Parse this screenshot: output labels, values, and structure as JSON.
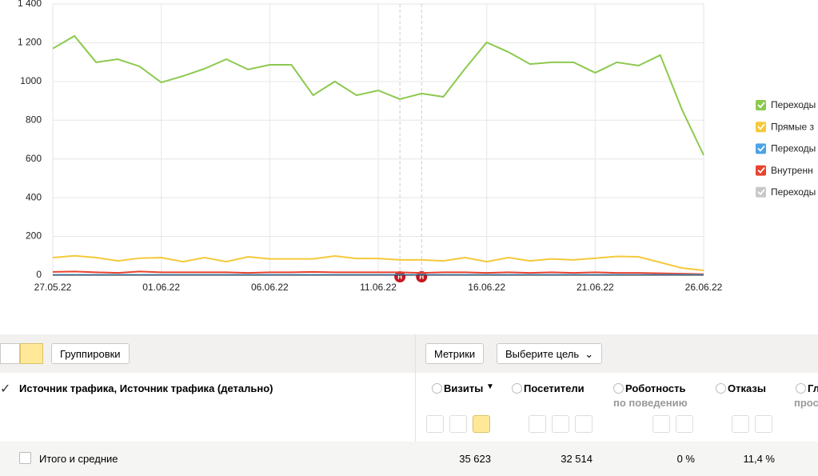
{
  "chart_data": {
    "type": "line",
    "categories": [
      "27.05.22",
      null,
      null,
      null,
      null,
      "01.06.22",
      null,
      null,
      null,
      null,
      "06.06.22",
      null,
      null,
      null,
      null,
      "11.06.22",
      null,
      null,
      null,
      null,
      "16.06.22",
      null,
      null,
      null,
      null,
      "21.06.22",
      null,
      null,
      null,
      null,
      "26.06.22"
    ],
    "series": [
      {
        "name": "Переходы",
        "color": "#8cc94f",
        "values": [
          1170,
          1235,
          1099,
          1115,
          1078,
          995,
          1028,
          1066,
          1115,
          1062,
          1086,
          1086,
          929,
          1000,
          929,
          954,
          909,
          938,
          921,
          1066,
          1202,
          1152,
          1090,
          1099,
          1099,
          1045,
          1099,
          1082,
          1136,
          855,
          620
        ]
      },
      {
        "name": "Прямые з",
        "color": "#f5c93a",
        "values": [
          91,
          100,
          91,
          74,
          88,
          91,
          70,
          91,
          70,
          95,
          84,
          84,
          84,
          99,
          86,
          86,
          79,
          79,
          74,
          91,
          70,
          91,
          74,
          84,
          79,
          88,
          97,
          95,
          66,
          37,
          25
        ]
      },
      {
        "name": "Переходы",
        "color": "#4aa3e6",
        "values": [
          2,
          2,
          2,
          2,
          2,
          2,
          2,
          2,
          2,
          2,
          2,
          2,
          2,
          2,
          2,
          2,
          2,
          2,
          2,
          2,
          2,
          2,
          2,
          2,
          2,
          2,
          2,
          2,
          2,
          2,
          2
        ]
      },
      {
        "name": "Внутренн",
        "color": "#e8432e",
        "values": [
          17,
          19,
          15,
          12,
          19,
          15,
          15,
          15,
          15,
          12,
          15,
          15,
          17,
          15,
          15,
          15,
          15,
          12,
          15,
          15,
          12,
          15,
          12,
          15,
          12,
          15,
          12,
          12,
          10,
          8,
          5
        ]
      },
      {
        "name": "Переходы",
        "color": "#c8c8c8",
        "enabled": false
      }
    ],
    "ylim": [
      0,
      1400
    ],
    "yticks": [
      0,
      200,
      400,
      600,
      800,
      1000,
      {
        "value": 1200,
        "label": "1 200"
      },
      {
        "value": 1400,
        "label": "1 400"
      }
    ],
    "grid": true,
    "legend": "right",
    "label_highlight": {
      "color": "#c4171e",
      "indices": [
        15,
        30
      ]
    },
    "markers": [
      {
        "index": 16,
        "label": "Н"
      },
      {
        "index": 17,
        "label": "Н"
      }
    ]
  },
  "toolbar": {
    "groupings": "Группировки",
    "metrics": "Метрики",
    "goal": "Выберите цель"
  },
  "table": {
    "dimension": "Источник трафика, Источник трафика (детально)",
    "columns": [
      {
        "label": "Визиты",
        "sort": "▼"
      },
      {
        "label": "Посетители"
      },
      {
        "label": "Роботность",
        "sub": "по поведению"
      },
      {
        "label": "Отказы"
      },
      {
        "label": "Гл",
        "sub": "прос"
      }
    ],
    "total_label": "Итого и средние",
    "totals": [
      "35 623",
      "32 514",
      "0 %",
      "11,4 %"
    ]
  }
}
